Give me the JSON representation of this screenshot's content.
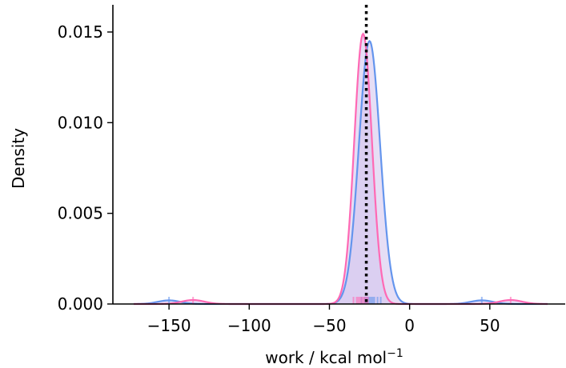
{
  "chart_data": {
    "type": "kde",
    "xlabel": "work / kcal mol",
    "xlabel_superscript": "−1",
    "ylabel": "Density",
    "xlim": [
      -185,
      97
    ],
    "ylim": [
      0,
      0.0165
    ],
    "x_ticks": [
      -150,
      -100,
      -50,
      0,
      50
    ],
    "x_tick_labels": [
      "−150",
      "−100",
      "−50",
      "0",
      "50"
    ],
    "y_ticks": [
      0,
      0.005,
      0.01,
      0.015
    ],
    "y_tick_labels": [
      "0.000",
      "0.005",
      "0.010",
      "0.015"
    ],
    "grid": false,
    "legend": "none",
    "reference_line": {
      "x": -27,
      "style": "dotted",
      "color": "#000000"
    },
    "series": [
      {
        "color": "#6495ed",
        "fill_color": "#d2c2ec",
        "components": [
          {
            "mean": -25,
            "sd": 6.6,
            "peak": 0.0145
          },
          {
            "mean": -150,
            "sd": 7,
            "peak": 0.0002
          },
          {
            "mean": 45,
            "sd": 7,
            "peak": 0.0002
          }
        ],
        "rug": [
          -150,
          -30,
          -28,
          -27,
          -26,
          -25,
          -24,
          -23,
          -22,
          -20,
          -18,
          45
        ]
      },
      {
        "color": "#ff69b4",
        "fill_color": "#d2c2ec",
        "components": [
          {
            "mean": -29,
            "sd": 5.5,
            "peak": 0.0149
          },
          {
            "mean": -135,
            "sd": 7,
            "peak": 0.00022
          },
          {
            "mean": 63,
            "sd": 7,
            "peak": 0.00022
          }
        ],
        "rug": [
          -135,
          -35,
          -33,
          -32,
          -31,
          -30,
          -29,
          -28,
          -27,
          -26,
          63
        ]
      }
    ]
  }
}
